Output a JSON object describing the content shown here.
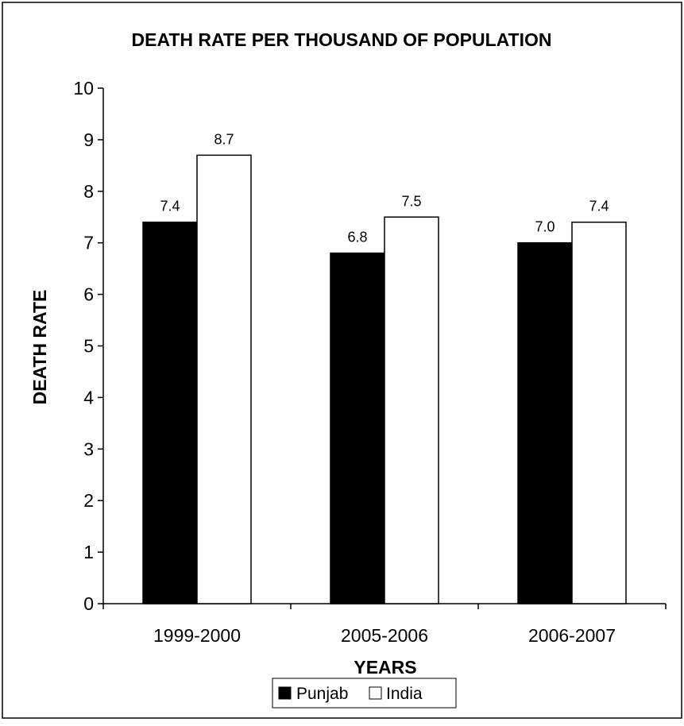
{
  "chart_data": {
    "type": "bar",
    "title": "DEATH RATE PER THOUSAND OF POPULATION",
    "xlabel": "YEARS",
    "ylabel": "DEATH RATE",
    "categories": [
      "1999-2000",
      "2005-2006",
      "2006-2007"
    ],
    "series": [
      {
        "name": "Punjab",
        "values": [
          7.4,
          6.8,
          7.0
        ],
        "labels": [
          "7.4",
          "6.8",
          "7.0"
        ],
        "color": "#000000"
      },
      {
        "name": "India",
        "values": [
          8.7,
          7.5,
          7.4
        ],
        "labels": [
          "8.7",
          "7.5",
          "7.4"
        ],
        "color": "#ffffff"
      }
    ],
    "ylim": [
      0,
      10
    ],
    "yticks": [
      "0",
      "1",
      "2",
      "3",
      "4",
      "5",
      "6",
      "7",
      "8",
      "9",
      "10"
    ],
    "grid": false,
    "legend_position": "bottom"
  }
}
